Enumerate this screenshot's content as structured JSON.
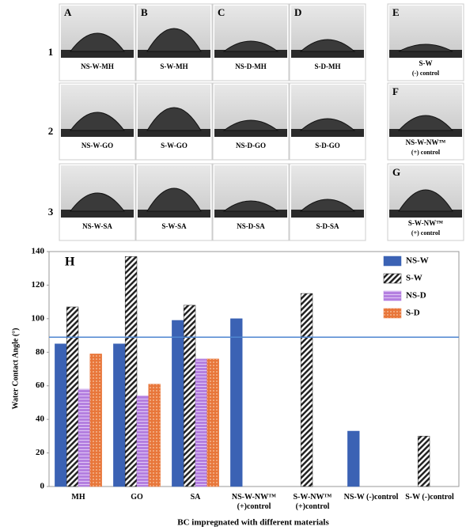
{
  "panels": {
    "row_labels": [
      "1",
      "2",
      "3"
    ],
    "column_letters": [
      "A",
      "B",
      "C",
      "D"
    ],
    "cells": [
      [
        "NS-W-MH",
        "S-W-MH",
        "NS-D-MH",
        "S-D-MH"
      ],
      [
        "NS-W-GO",
        "S-W-GO",
        "NS-D-GO",
        "S-D-GO"
      ],
      [
        "NS-W-SA",
        "S-W-SA",
        "NS-D-SA",
        "S-D-SA"
      ]
    ],
    "controls": [
      {
        "letter": "E",
        "label": "S-W",
        "note": "(-) control"
      },
      {
        "letter": "F",
        "label": "NS-W-NW™",
        "note": "(+) control"
      },
      {
        "letter": "G",
        "label": "S-W-NW™",
        "note": "(+) control"
      }
    ]
  },
  "chart_data": {
    "type": "bar",
    "panel_label": "H",
    "ylabel": "Water Contact Angle (°)",
    "xlabel": "BC impregnated with different materials",
    "categories": [
      "MH",
      "GO",
      "SA",
      "NS-W-NW™ (+)control",
      "S-W-NW™ (+)control",
      "NS-W (-)control",
      "S-W (-)control"
    ],
    "series": [
      {
        "name": "NS-W",
        "color": "#3b62b4",
        "values": [
          85,
          85,
          99,
          100,
          null,
          33,
          null
        ]
      },
      {
        "name": "S-W",
        "color": "#222222",
        "values": [
          107,
          137,
          108,
          null,
          115,
          null,
          30
        ]
      },
      {
        "name": "NS-D",
        "color": "#b47fe0",
        "values": [
          58,
          54,
          76,
          null,
          null,
          null,
          null
        ]
      },
      {
        "name": "S-D",
        "color": "#e8763a",
        "values": [
          79,
          61,
          76,
          null,
          null,
          null,
          null
        ]
      }
    ],
    "reference_line": 89,
    "reference_color": "#4f86d0",
    "ylim": [
      0,
      140
    ],
    "yticks": [
      0,
      20,
      40,
      60,
      80,
      100,
      120,
      140
    ],
    "legend": "top-right"
  }
}
